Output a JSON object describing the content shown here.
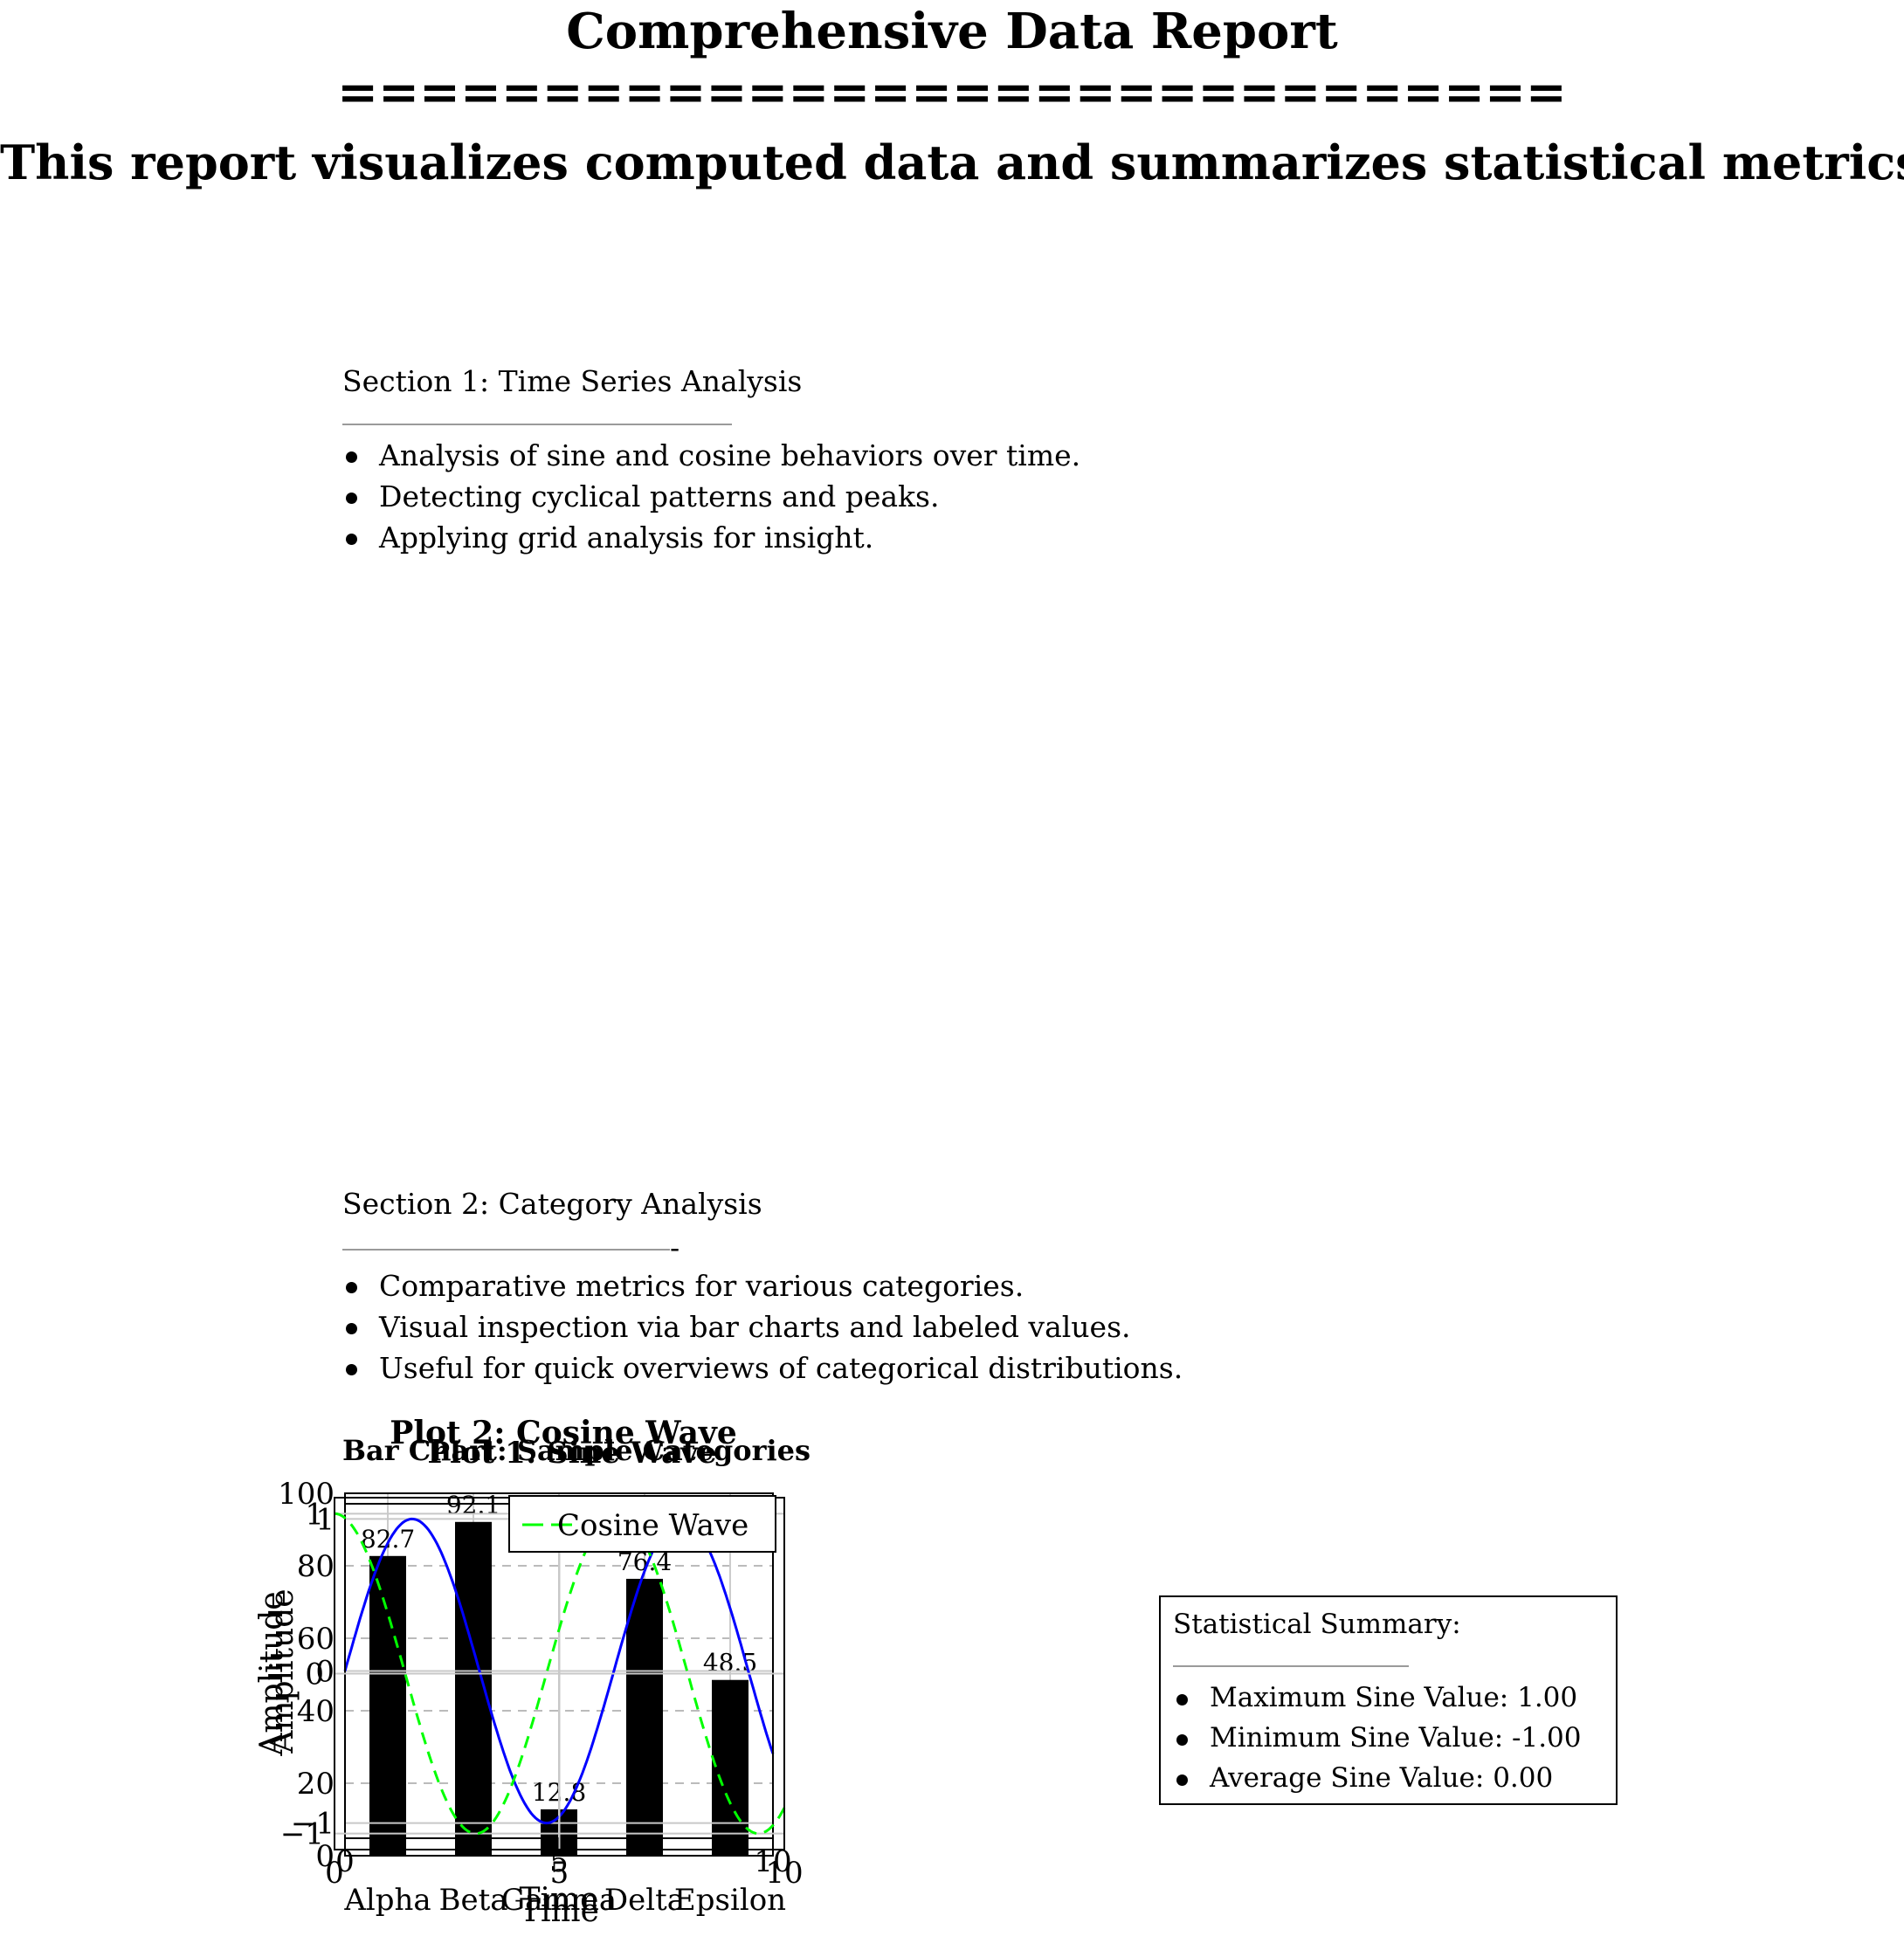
{
  "report": {
    "title": "Comprehensive Data Report",
    "separator": "==============================",
    "subtitle": "This report visualizes computed data and summarizes statistical metrics."
  },
  "section1": {
    "heading": "Section 1: Time Series Analysis",
    "rule": "",
    "bullets": [
      "Analysis of sine and cosine behaviors over time.",
      "Detecting cyclical patterns and peaks.",
      "Applying grid analysis for insight."
    ]
  },
  "section2": {
    "heading": "Section 2: Category Analysis",
    "rule_tail": "-",
    "bullets": [
      "Comparative metrics for various categories.",
      "Visual inspection via bar charts and labeled values.",
      "Useful for quick overviews of categorical distributions."
    ]
  },
  "summary": {
    "heading": "Statistical Summary:",
    "items": [
      "Maximum Sine Value: 1.00",
      "Minimum Sine Value: -1.00",
      "Average Sine Value: 0.00"
    ]
  },
  "chart_data": [
    {
      "type": "line",
      "title": "Plot 1: Sine Wave",
      "xlabel": "Time",
      "ylabel": "Amplitude",
      "xlim": [
        0,
        10
      ],
      "ylim": [
        -1.1,
        1.1
      ],
      "xticks": [
        0,
        5,
        10
      ],
      "yticks": [
        -1,
        0,
        1
      ],
      "grid": true,
      "series": [
        {
          "function": "sin",
          "color": "#0000ff",
          "style": "solid"
        }
      ]
    },
    {
      "type": "line",
      "title": "Plot 2: Cosine Wave",
      "xlabel": "Time",
      "ylabel": "Amplitude",
      "xlim": [
        0,
        10
      ],
      "ylim": [
        -1.1,
        1.1
      ],
      "xticks": [
        0,
        5,
        10
      ],
      "yticks": [
        -1,
        0,
        1
      ],
      "grid": true,
      "legend": "top-right",
      "series": [
        {
          "name": "Cosine Wave",
          "function": "cos",
          "color": "#00ff00",
          "style": "dashed"
        }
      ]
    },
    {
      "type": "bar",
      "title": "Bar Chart: Sample Categories",
      "categories": [
        "Alpha",
        "Beta",
        "Gamma",
        "Delta",
        "Epsilon"
      ],
      "values": [
        82.7,
        92.1,
        12.8,
        76.4,
        48.5
      ],
      "labels": [
        "82.7",
        "92.1",
        "12.8",
        "76.4",
        "48.5"
      ],
      "ylim": [
        0,
        100
      ],
      "yticks": [
        0,
        20,
        40,
        60,
        80,
        100
      ],
      "grid": true,
      "bar_color": "#000000"
    }
  ]
}
